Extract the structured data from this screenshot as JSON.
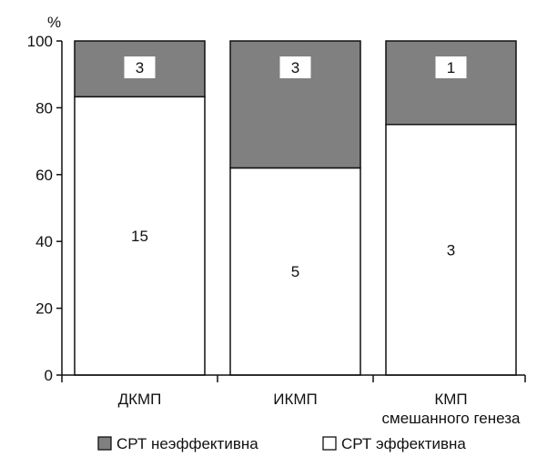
{
  "chart_data": {
    "type": "bar",
    "stacked": true,
    "ylabel": "%",
    "ylim": [
      0,
      100
    ],
    "yticks": [
      0,
      20,
      40,
      60,
      80,
      100
    ],
    "grid": false,
    "legend_placement": "bottom",
    "categories": [
      [
        "ДКМП"
      ],
      [
        "ИКМП"
      ],
      [
        "КМП",
        "смешанного генеза"
      ]
    ],
    "series": [
      {
        "name": "СРТ эффективна",
        "color": "#ffffff",
        "values": [
          83.3,
          62.0,
          75.0
        ],
        "count_labels": [
          "15",
          "5",
          "3"
        ]
      },
      {
        "name": "СРТ неэффективна",
        "color": "#808080",
        "values": [
          16.7,
          38.0,
          25.0
        ],
        "count_labels": [
          "3",
          "3",
          "1"
        ]
      }
    ],
    "legend_order": [
      1,
      0
    ]
  }
}
